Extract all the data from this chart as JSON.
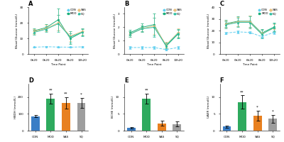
{
  "panel_A": {
    "title": "A",
    "ylabel": "Blood Glucose (mmol/L)",
    "xlabel": "Time Point",
    "timepoints": [
      "0h20",
      "0h20",
      "6h20",
      "8h20",
      "10h20"
    ],
    "CON": [
      4.5,
      4.8,
      4.6,
      4.5,
      4.7
    ],
    "MOD": [
      15.0,
      17.0,
      22.0,
      10.0,
      14.0
    ],
    "SAS": [
      14.5,
      16.5,
      20.0,
      11.5,
      14.5
    ],
    "SQ": [
      14.0,
      16.0,
      19.5,
      11.0,
      14.0
    ],
    "CON_err": [
      0.3,
      0.3,
      0.3,
      0.3,
      0.3
    ],
    "MOD_err": [
      1.5,
      2.0,
      7.0,
      3.5,
      2.0
    ],
    "SAS_err": [
      1.5,
      2.0,
      5.0,
      3.0,
      2.0
    ],
    "SQ_err": [
      1.5,
      2.0,
      5.5,
      3.5,
      2.5
    ],
    "ylim": [
      0,
      30
    ],
    "yticks": [
      0,
      10,
      20,
      30
    ]
  },
  "panel_B": {
    "title": "B",
    "ylabel": "Blood Glucose (mmol/L)",
    "xlabel": "Time Point",
    "timepoints": [
      "0h20",
      "0h20",
      "6h20",
      "8h20",
      "10h20"
    ],
    "CON": [
      0.5,
      0.5,
      0.5,
      0.35,
      0.5
    ],
    "MOD": [
      1.6,
      2.0,
      2.2,
      0.6,
      1.5
    ],
    "SAS": [
      1.5,
      1.9,
      2.1,
      0.7,
      1.6
    ],
    "SQ": [
      1.5,
      1.9,
      2.0,
      0.65,
      1.55
    ],
    "CON_err": [
      0.1,
      0.1,
      0.1,
      0.05,
      0.1
    ],
    "MOD_err": [
      0.2,
      0.3,
      0.8,
      0.2,
      0.3
    ],
    "SAS_err": [
      0.2,
      0.25,
      0.6,
      0.2,
      0.3
    ],
    "SQ_err": [
      0.2,
      0.25,
      0.7,
      0.2,
      0.3
    ],
    "ylim": [
      0,
      3.5
    ],
    "yticks": [
      0,
      1,
      2,
      3
    ]
  },
  "panel_C": {
    "title": "C",
    "ylabel": "Blood Glucose (mmol/L)",
    "xlabel": "Time Point",
    "timepoints": [
      "0h20",
      "0h20",
      "6h20",
      "8h20",
      "10h20"
    ],
    "CON": [
      18.0,
      19.0,
      18.5,
      15.0,
      18.5
    ],
    "MOD": [
      26.0,
      28.0,
      28.0,
      18.0,
      23.0
    ],
    "SAS": [
      25.5,
      27.5,
      27.5,
      17.5,
      22.0
    ],
    "SQ": [
      25.0,
      27.0,
      27.0,
      17.0,
      22.5
    ],
    "CON_err": [
      1.0,
      1.0,
      1.0,
      1.5,
      1.5
    ],
    "MOD_err": [
      3.0,
      4.0,
      5.0,
      3.5,
      3.5
    ],
    "SAS_err": [
      3.0,
      4.0,
      5.0,
      3.5,
      3.5
    ],
    "SQ_err": [
      3.0,
      4.0,
      5.0,
      3.5,
      3.5
    ],
    "ylim": [
      0,
      40
    ],
    "yticks": [
      0,
      10,
      20,
      30,
      40
    ]
  },
  "panel_D": {
    "title": "D",
    "ylabel": "HBDH (mmol/L)",
    "categories": [
      "CON",
      "MOD",
      "SAS",
      "SQ"
    ],
    "values": [
      85,
      190,
      165,
      165
    ],
    "errors": [
      7,
      30,
      35,
      30
    ],
    "colors": [
      "#3A7EC6",
      "#2EAA5E",
      "#E88020",
      "#9E9E9E"
    ],
    "ylim": [
      0,
      280
    ],
    "yticks": [
      0,
      100,
      200
    ],
    "sig": [
      "",
      "**",
      "**",
      "*"
    ]
  },
  "panel_E": {
    "title": "E",
    "ylabel": "BCHE (mmol/L)",
    "categories": [
      "CON",
      "MOD",
      "SAS",
      "SQ"
    ],
    "values": [
      0.8,
      9.5,
      2.2,
      2.0
    ],
    "errors": [
      0.15,
      1.5,
      0.7,
      0.7
    ],
    "colors": [
      "#3A7EC6",
      "#2EAA5E",
      "#E88020",
      "#9E9E9E"
    ],
    "ylim": [
      0,
      14
    ],
    "yticks": [
      0,
      5,
      10
    ],
    "sig": [
      "",
      "**",
      "",
      ""
    ]
  },
  "panel_F": {
    "title": "F",
    "ylabel": "UAER (mmol/L)",
    "categories": [
      "CON",
      "MOD",
      "SAS",
      "SQ"
    ],
    "values": [
      1.2,
      8.5,
      4.5,
      3.5
    ],
    "errors": [
      0.3,
      2.0,
      1.5,
      1.2
    ],
    "colors": [
      "#3A7EC6",
      "#2EAA5E",
      "#E88020",
      "#9E9E9E"
    ],
    "ylim": [
      0,
      14
    ],
    "yticks": [
      0,
      5,
      10
    ],
    "sig": [
      "",
      "**",
      "*",
      "*"
    ]
  },
  "line_colors": {
    "CON": "#62D0F0",
    "MOD": "#1AAF7A",
    "SAS": "#E8C080",
    "SQ": "#2ABDA0"
  }
}
